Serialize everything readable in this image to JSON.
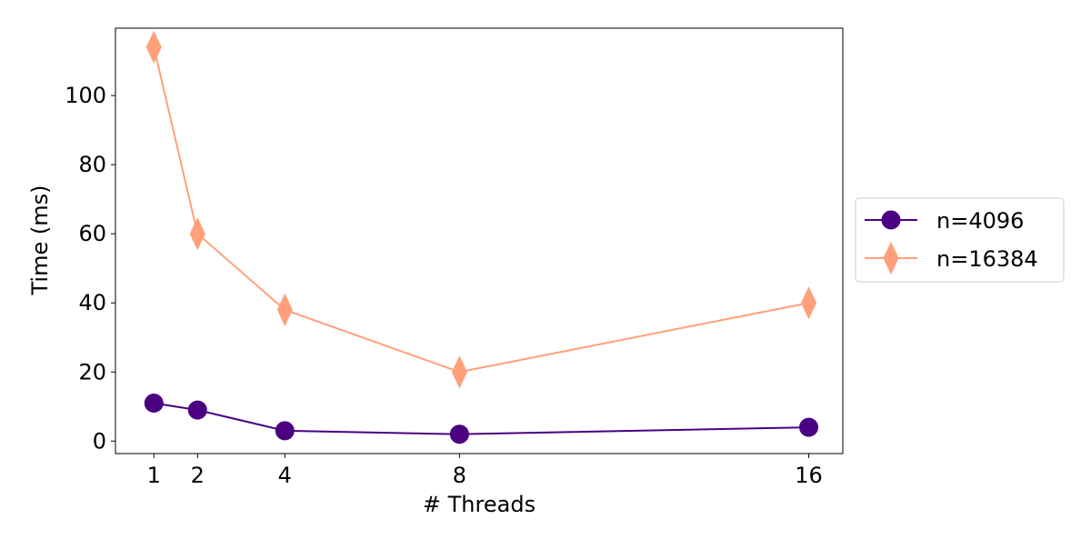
{
  "chart_data": {
    "type": "line",
    "title": "",
    "xlabel": "# Threads",
    "ylabel": "Time (ms)",
    "x": [
      1,
      2,
      4,
      8,
      16
    ],
    "xticks": [
      1,
      2,
      4,
      8,
      16
    ],
    "xtick_labels": [
      "1",
      "2",
      "4",
      "8",
      "16"
    ],
    "yticks": [
      0,
      20,
      40,
      60,
      80,
      100
    ],
    "ytick_labels": [
      "0",
      "20",
      "40",
      "60",
      "80",
      "100"
    ],
    "xlim": [
      0.12,
      16.78
    ],
    "ylim": [
      -3.6,
      119.5
    ],
    "grid": false,
    "legend_position": "outside-right",
    "series": [
      {
        "name": "n=4096",
        "values": [
          11,
          9,
          3,
          2,
          4
        ],
        "color": "#4b0082",
        "marker": "circle"
      },
      {
        "name": "n=16384",
        "values": [
          114,
          60,
          38,
          20,
          40
        ],
        "color": "#ffa07a",
        "marker": "thin-diamond"
      }
    ]
  }
}
